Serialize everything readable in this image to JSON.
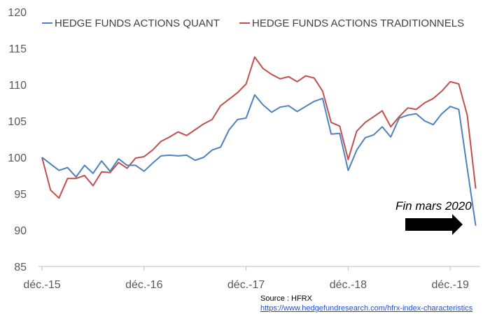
{
  "chart_data": {
    "type": "line",
    "title": "",
    "xlabel": "",
    "ylabel": "",
    "ylim": [
      85,
      120
    ],
    "yticks": [
      85,
      90,
      95,
      100,
      105,
      110,
      115,
      120
    ],
    "xtick_labels": [
      "déc.-15",
      "déc.-16",
      "déc.-17",
      "déc.-18",
      "déc.-19"
    ],
    "xtick_index": [
      0,
      12,
      24,
      36,
      48
    ],
    "legend_position": "top",
    "grid": false,
    "series": [
      {
        "name": "HEDGE FUNDS ACTIONS QUANT",
        "color": "#4f81bd",
        "values": [
          100.0,
          99.1,
          98.2,
          98.6,
          97.3,
          98.9,
          97.8,
          99.5,
          98.1,
          99.8,
          98.9,
          98.9,
          98.1,
          99.2,
          100.2,
          100.3,
          100.2,
          100.3,
          99.6,
          100.0,
          101.0,
          101.4,
          103.8,
          105.2,
          105.4,
          108.6,
          107.2,
          106.2,
          106.9,
          107.1,
          106.3,
          107.0,
          107.7,
          108.1,
          103.2,
          103.3,
          98.2,
          101.0,
          102.7,
          103.1,
          104.2,
          102.8,
          105.4,
          105.8,
          106.0,
          105.0,
          104.5,
          106.0,
          107.0,
          106.6,
          98.5,
          90.6
        ]
      },
      {
        "name": "HEDGE FUNDS ACTIONS TRADITIONNELS",
        "color": "#c0504d",
        "values": [
          100.0,
          95.5,
          94.4,
          97.1,
          97.1,
          97.5,
          96.1,
          98.0,
          97.9,
          99.3,
          98.5,
          99.9,
          100.1,
          101.0,
          102.2,
          102.8,
          103.5,
          103.0,
          103.8,
          104.6,
          105.2,
          107.1,
          108.0,
          108.9,
          110.1,
          113.8,
          112.2,
          111.4,
          110.8,
          111.1,
          110.4,
          111.2,
          110.9,
          109.1,
          104.8,
          104.3,
          99.7,
          103.6,
          104.8,
          105.6,
          106.4,
          104.2,
          105.6,
          106.8,
          106.6,
          107.5,
          108.1,
          109.1,
          110.4,
          110.1,
          105.8,
          95.7
        ]
      }
    ],
    "annotations": [
      {
        "text": "Fin mars 2020",
        "arrow": "right"
      }
    ]
  },
  "source": {
    "label": "Source : HFRX",
    "url": "https://www.hedgefundresearch.com/hfrx-index-characteristics"
  }
}
